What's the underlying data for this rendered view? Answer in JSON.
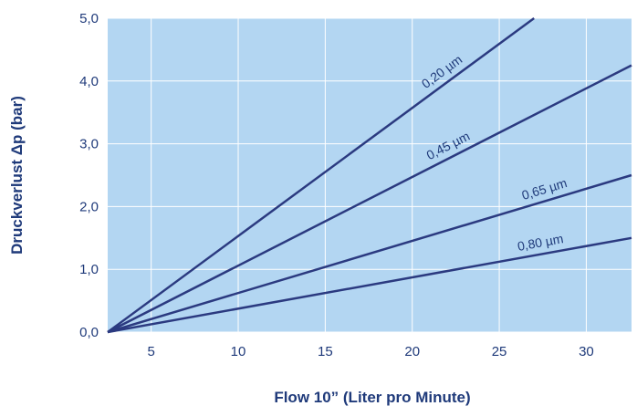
{
  "colors": {
    "plot_background": "#b3d6f2",
    "grid": "#ffffff",
    "line": "#2b3a80",
    "text": "#1f3a7a"
  },
  "chart_data": {
    "type": "line",
    "xlabel": "Flow 10” (Liter pro Minute)",
    "ylabel": "Druckverlust Δp (bar)",
    "xlim": [
      2.5,
      32.6
    ],
    "ylim": [
      0,
      5
    ],
    "x_ticks": [
      5,
      10,
      15,
      20,
      25,
      30
    ],
    "x_tick_labels": [
      "5",
      "10",
      "15",
      "20",
      "25",
      "30"
    ],
    "y_ticks": [
      0,
      1,
      2,
      3,
      4,
      5
    ],
    "y_tick_labels": [
      "0,0",
      "1,0",
      "2,0",
      "3,0",
      "4,0",
      "5,0"
    ],
    "grid": true,
    "series": [
      {
        "name": "0,20 µm",
        "x": [
          2.5,
          27.0
        ],
        "y": [
          0,
          5.0
        ]
      },
      {
        "name": "0,45 µm",
        "x": [
          2.5,
          32.6
        ],
        "y": [
          0,
          4.25
        ]
      },
      {
        "name": "0,65 µm",
        "x": [
          2.5,
          32.6
        ],
        "y": [
          0,
          2.5
        ]
      },
      {
        "name": "0,80 µm",
        "x": [
          2.5,
          32.6
        ],
        "y": [
          0,
          1.5
        ]
      }
    ]
  }
}
